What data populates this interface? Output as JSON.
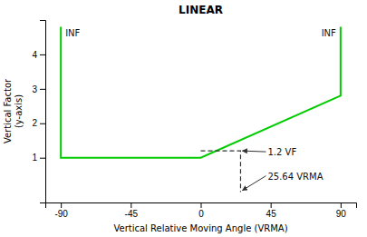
{
  "chart_data": {
    "type": "line",
    "title": "LINEAR",
    "x_label": "Vertical Relative Moving Angle (VRMA)",
    "y_label": "Vertical Factor\n(y-axis)",
    "xlim": [
      -100,
      100
    ],
    "ylim": [
      -0.3,
      5.0
    ],
    "xticks": [
      -90,
      -45,
      0,
      45,
      90
    ],
    "yticks": [
      1,
      2,
      3,
      4
    ],
    "series": [
      {
        "x": [
          -90,
          -90,
          0,
          90,
          90
        ],
        "values": [
          4.8,
          1,
          1,
          2.8,
          4.8
        ],
        "color": "#00cc00",
        "line_style": "solid"
      },
      {
        "x": [
          0,
          25.64,
          25.64
        ],
        "values": [
          1.2,
          1.2,
          0
        ],
        "color": "#333333",
        "line_style": "dashed"
      }
    ],
    "annotations": [
      {
        "text": "INF",
        "x": -90,
        "y": 4.8
      },
      {
        "text": "INF",
        "x": 90,
        "y": 4.8
      },
      {
        "text": "1.2 VF",
        "x": 25.64,
        "y": 1.2
      },
      {
        "text": "25.64 VRMA",
        "x": 25.64,
        "y": 0
      }
    ]
  }
}
